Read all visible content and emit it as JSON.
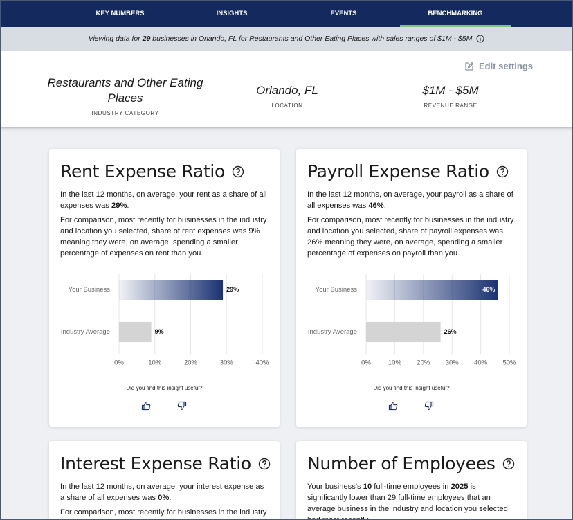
{
  "nav": {
    "items": [
      "KEY NUMBERS",
      "INSIGHTS",
      "EVENTS",
      "BENCHMARKING"
    ],
    "active": 3
  },
  "banner": {
    "text": [
      "Viewing data for ",
      "29",
      " businesses in Orlando, FL for Restaurants and Other Eating Places with sales ranges of $1M - $5M"
    ]
  },
  "settings": {
    "edit": "Edit settings",
    "fields": [
      {
        "value": "Restaurants and Other Eating Places",
        "label": "INDUSTRY CATEGORY"
      },
      {
        "value": "Orlando, FL",
        "label": "LOCATION"
      },
      {
        "value": "$1M - $5M",
        "label": "REVENUE RANGE"
      }
    ]
  },
  "cards": [
    {
      "title": "Rent Expense Ratio",
      "paragraphs": [
        [
          "In the last 12 months, on average, your rent as a share of all expenses was ",
          "29%",
          "."
        ],
        [
          "For comparison, most recently for businesses in the industry and location you selected, share of rent expenses was 9% meaning they were, on average, spending a smaller percentage of expenses on rent than you."
        ]
      ],
      "chart": {
        "type": "bar",
        "categories": [
          "Your Business",
          "Industry Average"
        ],
        "values": [
          29,
          9
        ],
        "value_labels": [
          "29%",
          "9%"
        ],
        "colors": [
          "#1b3272",
          "#d4d4d4"
        ],
        "xlim": [
          0,
          40
        ],
        "xticks": [
          {
            "value": 0,
            "label": "0%"
          },
          {
            "value": 10,
            "label": "10%"
          },
          {
            "value": 20,
            "label": "20%"
          },
          {
            "value": 30,
            "label": "30%"
          },
          {
            "value": 40,
            "label": "40%"
          }
        ],
        "grid": true
      },
      "feedback": "Did you find this insight useful?"
    },
    {
      "title": "Payroll Expense Ratio",
      "paragraphs": [
        [
          "In the last 12 months, on average, your payroll as a share of all expenses was ",
          "46%",
          "."
        ],
        [
          "For comparison, most recently for businesses in the industry and location you selected, share of payroll expenses was 26% meaning they were, on average, spending a smaller percentage of expenses on payroll than you."
        ]
      ],
      "chart": {
        "type": "bar",
        "categories": [
          "Your Business",
          "Industry Average"
        ],
        "values": [
          46,
          26
        ],
        "value_labels": [
          "46%",
          "26%"
        ],
        "colors": [
          "#1b3272",
          "#d4d4d4"
        ],
        "xlim": [
          0,
          50
        ],
        "xticks": [
          {
            "value": 0,
            "label": "0%"
          },
          {
            "value": 10,
            "label": "10%"
          },
          {
            "value": 20,
            "label": "20%"
          },
          {
            "value": 30,
            "label": "30%"
          },
          {
            "value": 40,
            "label": "40%"
          },
          {
            "value": 50,
            "label": "50%"
          }
        ],
        "grid": true
      },
      "feedback": "Did you find this insight useful?"
    },
    {
      "title": "Interest Expense Ratio",
      "paragraphs": [
        [
          "In the last 12 months, on average, your interest expense as a share of all expenses was ",
          "0%",
          "."
        ],
        [
          "For comparison, most recently for businesses in the industry"
        ]
      ]
    },
    {
      "title": "Number of Employees",
      "paragraphs": [
        [
          "Your business's ",
          "10",
          " full-time employees in ",
          "2025",
          " is significantly lower than 29 full-time employees that an average business in the industry and location you selected had most recently."
        ]
      ]
    }
  ]
}
